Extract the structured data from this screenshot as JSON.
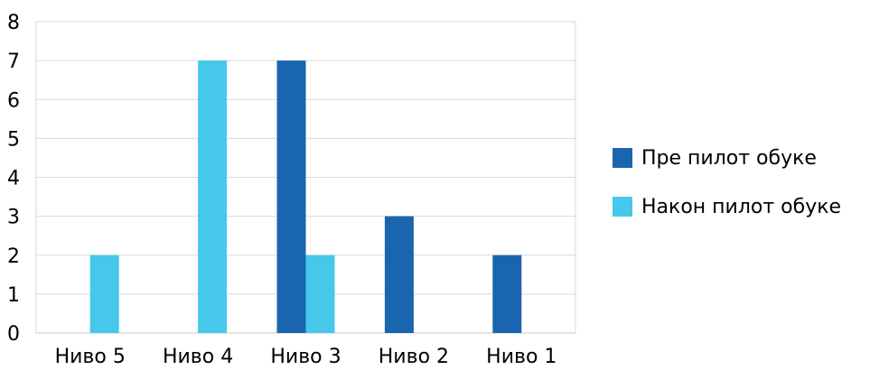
{
  "chart_data": {
    "type": "bar",
    "categories": [
      "Ниво 5",
      "Ниво 4",
      "Ниво 3",
      "Ниво 2",
      "Ниво 1"
    ],
    "series": [
      {
        "name": "Пре пилот обуке",
        "values": [
          0,
          0,
          7,
          3,
          2
        ],
        "color": "#1a65b0"
      },
      {
        "name": "Након пилот обуке",
        "values": [
          2,
          7,
          2,
          0,
          0
        ],
        "color": "#45c8ea"
      }
    ],
    "yticks": [
      "0",
      "1",
      "2",
      "3",
      "4",
      "5",
      "6",
      "7",
      "8"
    ],
    "ylim": [
      0,
      8
    ],
    "grid": true,
    "legend": "right"
  }
}
